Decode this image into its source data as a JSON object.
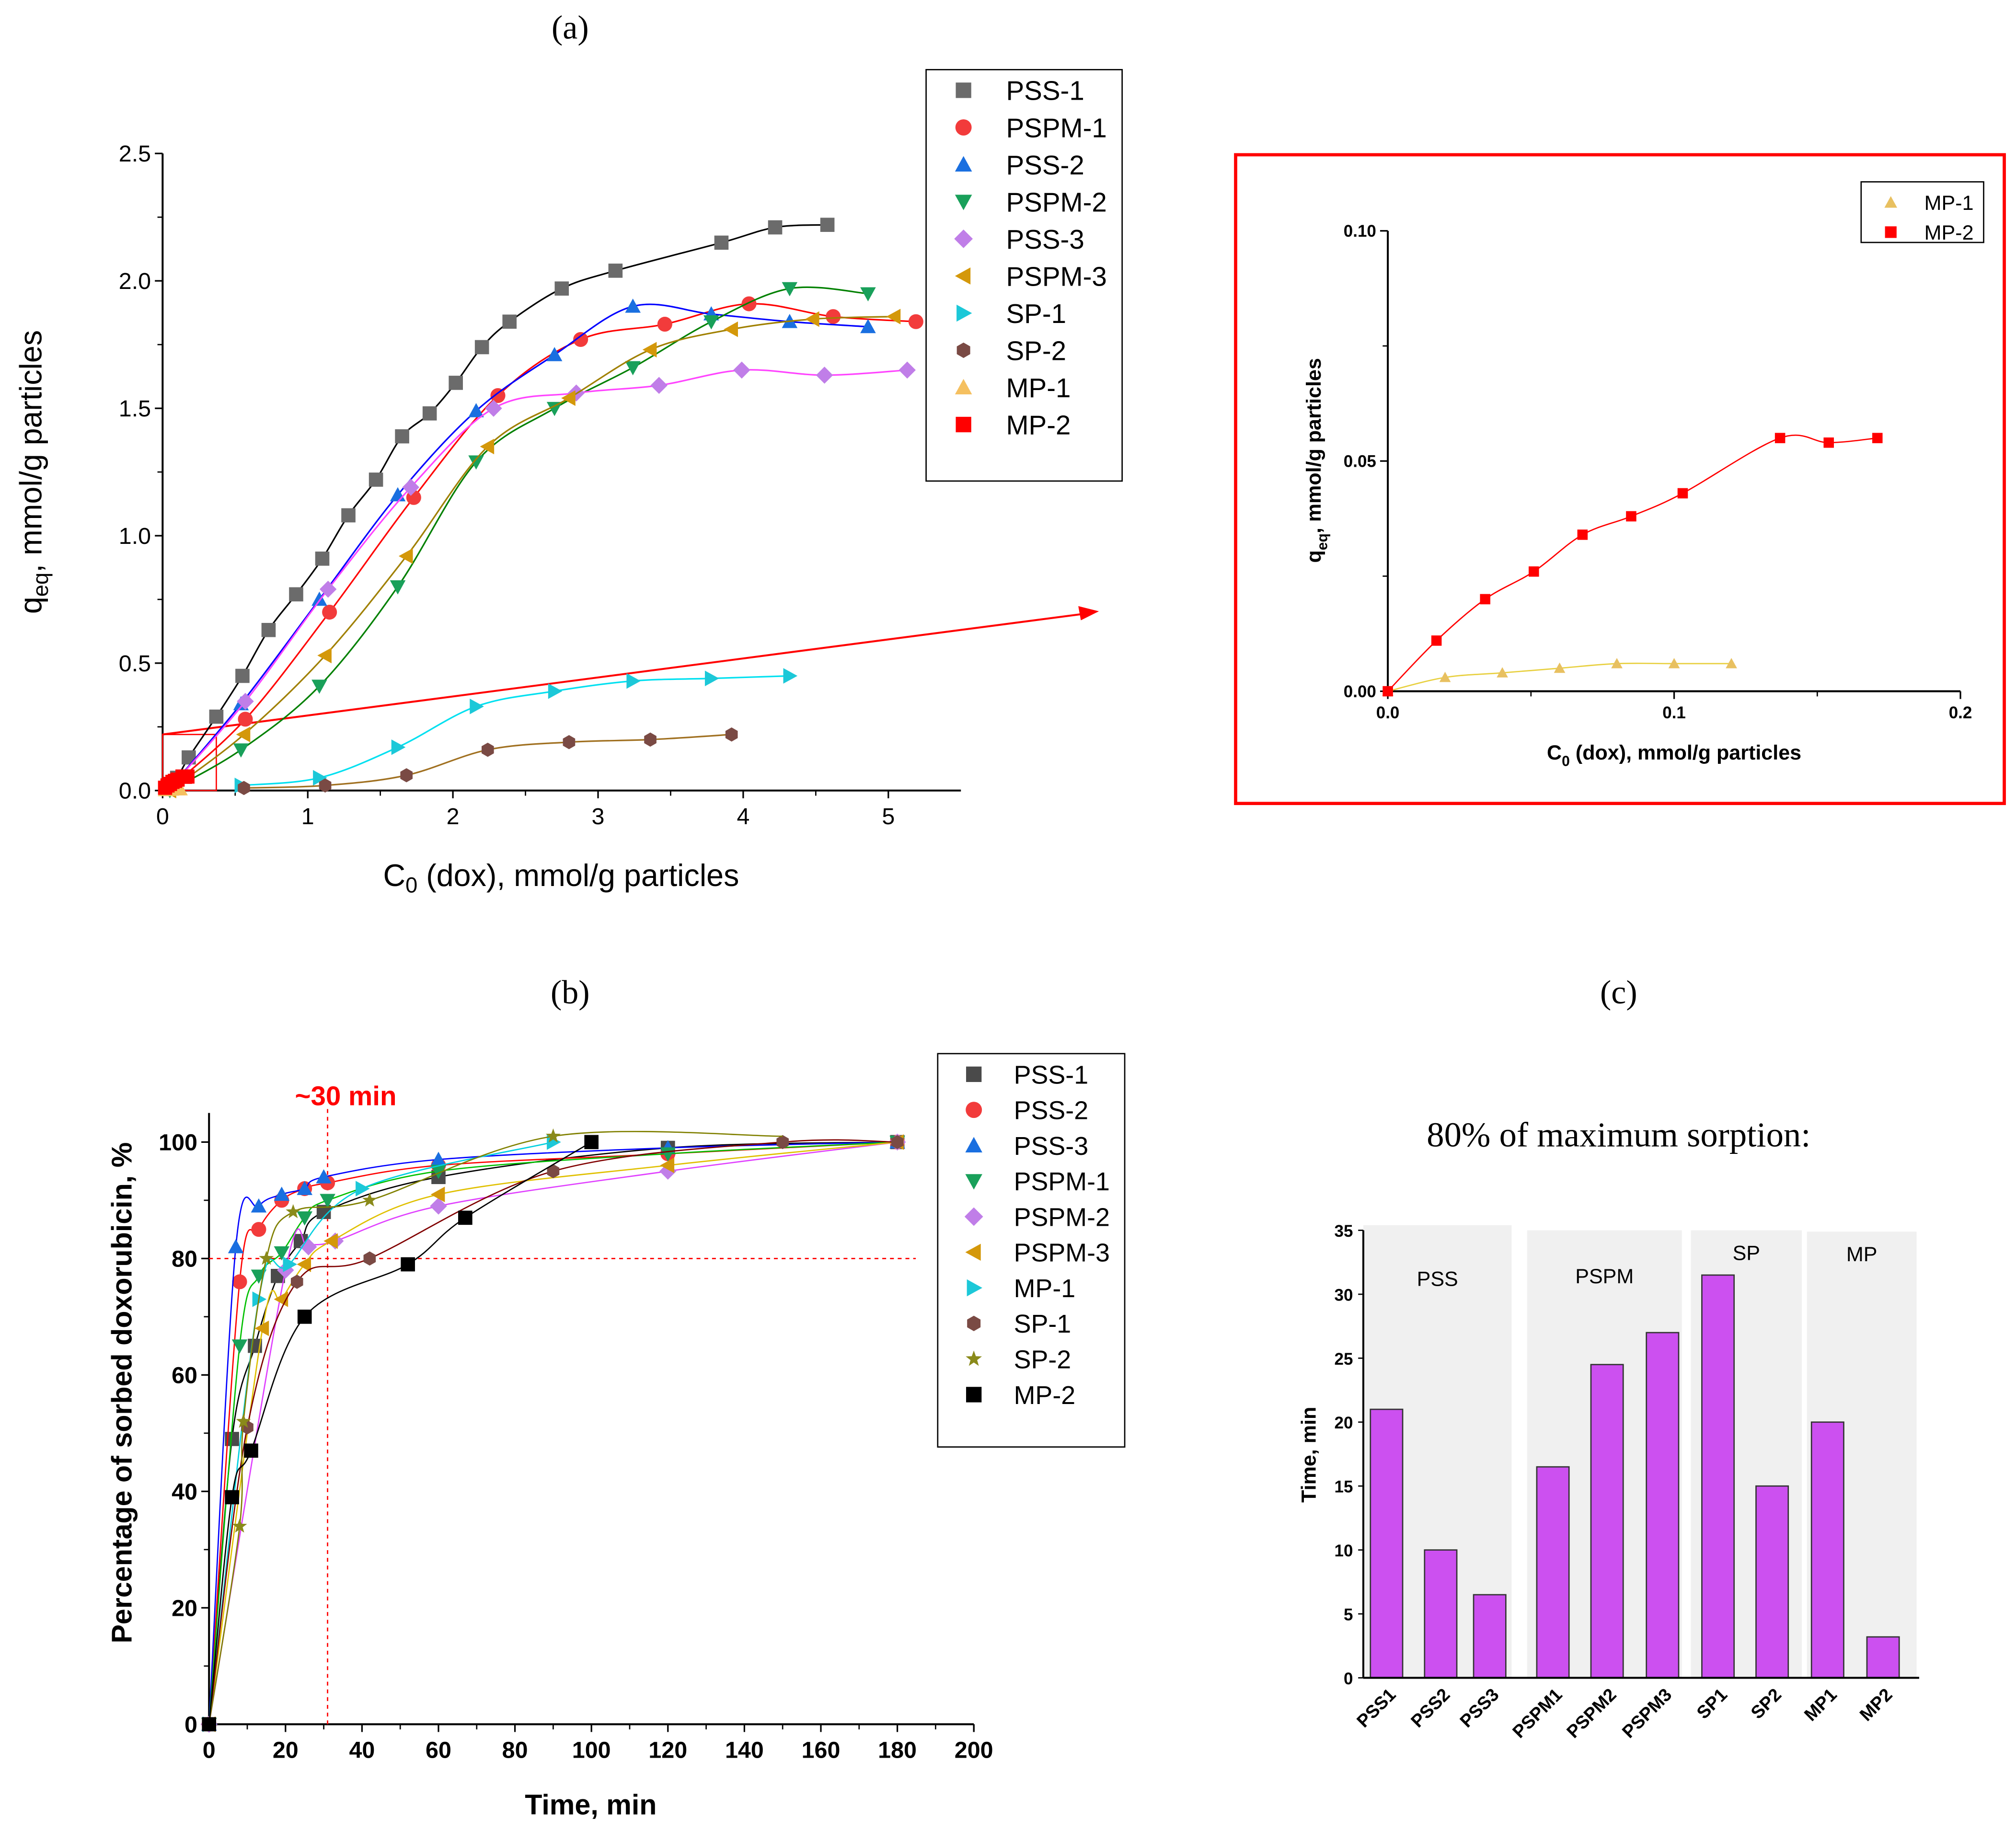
{
  "panel_labels": {
    "a": "(a)",
    "b": "(b)",
    "c": "(c)"
  },
  "chart_data": [
    {
      "id": "a",
      "type": "scatter",
      "xlabel": {
        "main": "C",
        "sub": "0",
        "rest": " (dox), mmol/g particles"
      },
      "ylabel": {
        "main": "q",
        "sub": "eq",
        "rest": ", mmol/g particles"
      },
      "xlim": [
        0,
        5.5
      ],
      "ylim": [
        0,
        2.5
      ],
      "xticks": [
        0,
        1,
        2,
        3,
        4,
        5
      ],
      "xtick_labels": [
        "0",
        "1",
        "2",
        "3",
        "4",
        "5"
      ],
      "yticks": [
        0,
        0.5,
        1,
        1.5,
        2,
        2.5
      ],
      "ytick_labels": [
        "0.0",
        "0.5",
        "1.0",
        "1.5",
        "2.0",
        "2.5"
      ],
      "legend_position": "top-right",
      "series": [
        {
          "name": "PSS-1",
          "marker": "square",
          "color": "#6b6b6b",
          "line": "#000000",
          "x": [
            0.03,
            0.1,
            0.18,
            0.37,
            0.55,
            0.73,
            0.92,
            1.1,
            1.28,
            1.47,
            1.65,
            1.84,
            2.02,
            2.2,
            2.39,
            2.75,
            3.12,
            3.85,
            4.22,
            4.58
          ],
          "y": [
            0.01,
            0.05,
            0.13,
            0.29,
            0.45,
            0.63,
            0.77,
            0.91,
            1.08,
            1.22,
            1.39,
            1.48,
            1.6,
            1.74,
            1.84,
            1.97,
            2.04,
            2.15,
            2.21,
            2.22
          ]
        },
        {
          "name": "PSPM-1",
          "marker": "circle",
          "color": "#f23b3b",
          "line": "#ff0000",
          "x": [
            0.05,
            0.57,
            1.15,
            1.73,
            2.31,
            2.88,
            3.46,
            4.04,
            4.62,
            5.19
          ],
          "y": [
            0.01,
            0.28,
            0.7,
            1.15,
            1.55,
            1.77,
            1.83,
            1.91,
            1.86,
            1.84
          ]
        },
        {
          "name": "PSS-2",
          "marker": "triangle-up",
          "color": "#1a6fe0",
          "line": "#0000ff",
          "x": [
            0.05,
            0.54,
            1.08,
            1.62,
            2.16,
            2.7,
            3.24,
            3.78,
            4.32,
            4.86
          ],
          "y": [
            0.01,
            0.34,
            0.75,
            1.16,
            1.49,
            1.71,
            1.9,
            1.87,
            1.84,
            1.82
          ]
        },
        {
          "name": "PSPM-2",
          "marker": "triangle-down",
          "color": "#19a05a",
          "line": "#008000",
          "x": [
            0.05,
            0.54,
            1.08,
            1.62,
            2.16,
            2.7,
            3.24,
            3.78,
            4.32,
            4.86
          ],
          "y": [
            0.0,
            0.16,
            0.41,
            0.8,
            1.29,
            1.5,
            1.66,
            1.84,
            1.97,
            1.95
          ]
        },
        {
          "name": "PSS-3",
          "marker": "diamond",
          "color": "#c07ee8",
          "line": "#ff44ff",
          "x": [
            0.05,
            0.57,
            1.14,
            1.71,
            2.28,
            2.85,
            3.42,
            3.99,
            4.56,
            5.13
          ],
          "y": [
            0.01,
            0.35,
            0.79,
            1.19,
            1.5,
            1.56,
            1.59,
            1.65,
            1.63,
            1.65
          ]
        },
        {
          "name": "PSPM-3",
          "marker": "triangle-left",
          "color": "#d4980a",
          "line": "#a08000",
          "x": [
            0.05,
            0.56,
            1.12,
            1.68,
            2.24,
            2.8,
            3.36,
            3.92,
            4.48,
            5.04
          ],
          "y": [
            0.0,
            0.22,
            0.53,
            0.92,
            1.35,
            1.54,
            1.73,
            1.81,
            1.85,
            1.86
          ]
        },
        {
          "name": "SP-1",
          "marker": "triangle-right",
          "color": "#1cc8d8",
          "line": "#00e0f0",
          "x": [
            0.54,
            1.08,
            1.62,
            2.16,
            2.7,
            3.24,
            3.78,
            4.32
          ],
          "y": [
            0.02,
            0.05,
            0.17,
            0.33,
            0.39,
            0.43,
            0.44,
            0.45
          ]
        },
        {
          "name": "SP-2",
          "marker": "hexagon",
          "color": "#7a4a44",
          "line": "#a07020",
          "x": [
            0.56,
            1.12,
            1.68,
            2.24,
            2.8,
            3.36,
            3.92
          ],
          "y": [
            0.01,
            0.02,
            0.06,
            0.16,
            0.19,
            0.2,
            0.22
          ]
        },
        {
          "name": "MP-1",
          "marker": "triangle-up",
          "color": "#f5c060",
          "line": "#e8d040",
          "x": [
            0.02,
            0.04,
            0.06,
            0.08,
            0.1,
            0.12
          ],
          "y": [
            0.003,
            0.004,
            0.005,
            0.006,
            0.006,
            0.006
          ]
        },
        {
          "name": "MP-2",
          "marker": "square",
          "color": "#ff0000",
          "line": "#ff0000",
          "x": [
            0.017,
            0.034,
            0.051,
            0.068,
            0.085,
            0.103,
            0.137,
            0.154,
            0.171
          ],
          "y": [
            0.011,
            0.02,
            0.026,
            0.034,
            0.038,
            0.043,
            0.055,
            0.054,
            0.055
          ]
        }
      ]
    },
    {
      "id": "inset",
      "type": "scatter",
      "xlabel": {
        "main": "C",
        "sub": "0",
        "rest": " (dox), mmol/g particles"
      },
      "ylabel": {
        "main": "q",
        "sub": "eq",
        "rest": ", mmol/g particles"
      },
      "xlim": [
        0,
        0.2
      ],
      "ylim": [
        0,
        0.1
      ],
      "xticks": [
        0,
        0.1,
        0.2
      ],
      "xtick_labels": [
        "0.0",
        "0.1",
        "0.2"
      ],
      "yticks": [
        0,
        0.05,
        0.1
      ],
      "ytick_labels": [
        "0.00",
        "0.05",
        "0.10"
      ],
      "legend_position": "top-right",
      "series": [
        {
          "name": "MP-1",
          "marker": "triangle-up",
          "color": "#e8c060",
          "line": "#e8d040",
          "x": [
            0,
            0.02,
            0.04,
            0.06,
            0.08,
            0.1,
            0.12
          ],
          "y": [
            0,
            0.003,
            0.004,
            0.005,
            0.006,
            0.006,
            0.006
          ]
        },
        {
          "name": "MP-2",
          "marker": "square",
          "color": "#ff0000",
          "line": "#ff0000",
          "x": [
            0,
            0.017,
            0.034,
            0.051,
            0.068,
            0.085,
            0.103,
            0.137,
            0.154,
            0.171
          ],
          "y": [
            0,
            0.011,
            0.02,
            0.026,
            0.034,
            0.038,
            0.043,
            0.055,
            0.054,
            0.055
          ]
        }
      ]
    },
    {
      "id": "b",
      "type": "scatter",
      "xlabel": {
        "main": "Time, min",
        "sub": "",
        "rest": ""
      },
      "ylabel": {
        "main": "Percentage of sorbed doxorubicin, %",
        "sub": "",
        "rest": ""
      },
      "xlim": [
        0,
        200
      ],
      "ylim": [
        0,
        105
      ],
      "xticks": [
        0,
        20,
        40,
        60,
        80,
        100,
        120,
        140,
        160,
        180,
        200
      ],
      "xtick_labels": [
        "0",
        "20",
        "40",
        "60",
        "80",
        "100",
        "120",
        "140",
        "160",
        "180",
        "200"
      ],
      "yticks": [
        0,
        20,
        40,
        60,
        80,
        100
      ],
      "ytick_labels": [
        "0",
        "20",
        "40",
        "60",
        "80",
        "100"
      ],
      "annotation": {
        "text": "~30 min",
        "color": "#ff0000",
        "x_line": 31,
        "y_line": 80
      },
      "legend_position": "top-right",
      "series": [
        {
          "name": "PSS-1",
          "marker": "square",
          "color": "#4a4a4a",
          "line": "#000000",
          "end": 180,
          "x": [
            0,
            6,
            12,
            18,
            24,
            30,
            60,
            120,
            180
          ],
          "y": [
            0,
            49,
            65,
            77,
            83,
            88,
            94,
            99,
            100
          ]
        },
        {
          "name": "PSS-2",
          "marker": "circle",
          "color": "#f23b3b",
          "line": "#ff0000",
          "end": 180,
          "x": [
            0,
            8,
            13,
            19,
            25,
            31,
            60,
            120,
            180
          ],
          "y": [
            0,
            76,
            85,
            90,
            92,
            93,
            96,
            98,
            100
          ]
        },
        {
          "name": "PSS-3",
          "marker": "triangle-up",
          "color": "#1a6fe0",
          "line": "#0000ff",
          "end": 180,
          "x": [
            0,
            7,
            13,
            19,
            25,
            30,
            60,
            120,
            180
          ],
          "y": [
            0,
            82,
            89,
            91,
            92,
            94,
            97,
            99,
            100
          ]
        },
        {
          "name": "PSPM-1",
          "marker": "triangle-down",
          "color": "#19a05a",
          "line": "#00c000",
          "end": 180,
          "x": [
            0,
            8,
            13,
            19,
            25,
            31,
            60,
            120,
            180
          ],
          "y": [
            0,
            65,
            77,
            81,
            87,
            90,
            95,
            98,
            100
          ]
        },
        {
          "name": "PSPM-2",
          "marker": "diamond",
          "color": "#c07ee8",
          "line": "#e040ff",
          "end": 180,
          "x": [
            0,
            20,
            26,
            33,
            60,
            120,
            180
          ],
          "y": [
            0,
            78,
            82,
            83,
            89,
            95,
            100
          ]
        },
        {
          "name": "PSPM-3",
          "marker": "triangle-left",
          "color": "#d4980a",
          "line": "#e0c000",
          "end": 180,
          "x": [
            0,
            14,
            19,
            25,
            32,
            60,
            120,
            180
          ],
          "y": [
            0,
            68,
            73,
            79,
            83,
            91,
            96,
            100
          ]
        },
        {
          "name": "MP-1",
          "marker": "triangle-right",
          "color": "#1cc8d8",
          "line": "#00d0e0",
          "end": 90,
          "x": [
            0,
            13,
            21,
            40,
            90
          ],
          "y": [
            0,
            73,
            79,
            92,
            100
          ]
        },
        {
          "name": "SP-1",
          "marker": "hexagon",
          "color": "#7a4a44",
          "line": "#800000",
          "end": 180,
          "x": [
            0,
            10,
            23,
            42,
            90,
            150,
            180
          ],
          "y": [
            0,
            51,
            76,
            80,
            95,
            100,
            100
          ]
        },
        {
          "name": "SP-2",
          "marker": "star",
          "color": "#8a8a1a",
          "line": "#808000",
          "end": 150,
          "x": [
            0,
            8,
            9,
            15,
            22,
            42,
            90
          ],
          "y": [
            0,
            34,
            52,
            80,
            88,
            90,
            101
          ]
        },
        {
          "name": "MP-2",
          "marker": "square",
          "color": "#000000",
          "line": "#000000",
          "end": 100,
          "x": [
            0,
            6,
            11,
            25,
            52,
            67,
            100
          ],
          "y": [
            0,
            39,
            47,
            70,
            79,
            87,
            100
          ]
        }
      ]
    },
    {
      "id": "c",
      "type": "bar",
      "title": "80% of maximum sorption:",
      "ylabel": {
        "main": "Time, min",
        "sub": "",
        "rest": ""
      },
      "ylim": [
        0,
        35
      ],
      "yticks": [
        0,
        5,
        10,
        15,
        20,
        25,
        30,
        35
      ],
      "ytick_labels": [
        "0",
        "5",
        "10",
        "15",
        "20",
        "25",
        "30",
        "35"
      ],
      "categories": [
        "PSS1",
        "PSS2",
        "PSS3",
        "PSPM1",
        "PSPM2",
        "PSPM3",
        "SP1",
        "SP2",
        "MP1",
        "MP2"
      ],
      "values": [
        21,
        10,
        6.5,
        16.5,
        24.5,
        27,
        31.5,
        15,
        20,
        3.2
      ],
      "bar_color": "#cc50f0",
      "groups": [
        {
          "label": "PSS",
          "members": [
            0,
            1,
            2
          ]
        },
        {
          "label": "PSPM",
          "members": [
            3,
            4,
            5
          ]
        },
        {
          "label": "SP",
          "members": [
            6,
            7
          ]
        },
        {
          "label": "MP",
          "members": [
            8,
            9
          ]
        }
      ]
    }
  ]
}
